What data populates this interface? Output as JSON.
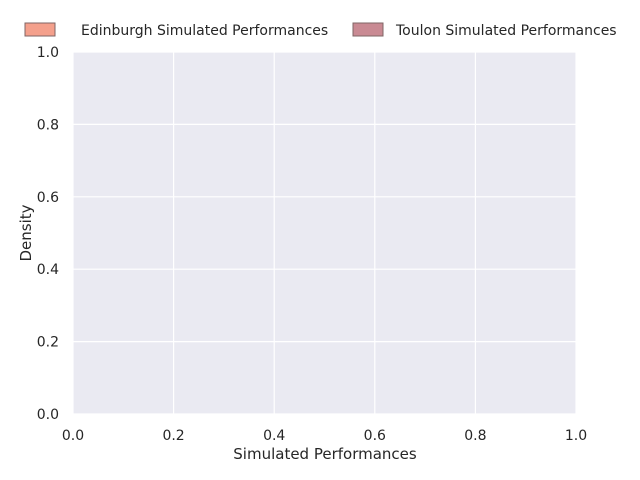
{
  "chart_data": {
    "type": "area",
    "title": "",
    "xlabel": "Simulated Performances",
    "ylabel": "Density",
    "xlim": [
      0.0,
      1.0
    ],
    "ylim": [
      0.0,
      1.0
    ],
    "x_ticks": [
      "0.0",
      "0.2",
      "0.4",
      "0.6",
      "0.8",
      "1.0"
    ],
    "y_ticks": [
      "0.0",
      "0.2",
      "0.4",
      "0.6",
      "0.8",
      "1.0"
    ],
    "grid": true,
    "legend_position": "top",
    "background_color": "#eaeaf2",
    "grid_color": "#ffffff",
    "series": [
      {
        "name": "Edinburgh Simulated Performances",
        "color": "#f4a08c",
        "x": [],
        "y": []
      },
      {
        "name": "Toulon Simulated Performances",
        "color": "#c98a93",
        "x": [],
        "y": []
      }
    ]
  }
}
